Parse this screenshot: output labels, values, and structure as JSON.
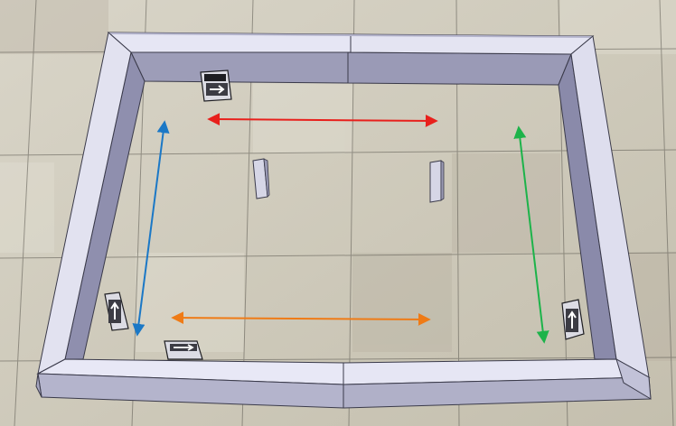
{
  "scene": {
    "colors": {
      "floor_light": "#d9d5c8",
      "floor_mid": "#c9c4b4",
      "floor_dark": "#b6b0a0",
      "tile_line": "#5a574f",
      "wall_top": "#e6e6f4",
      "wall_inner": "#9d9db8",
      "wall_inner_dark": "#7f7f9c",
      "wall_outer": "#b4b4cc",
      "wall_edge": "#3a3a4a",
      "post": "#d6d6e6",
      "robot_body": "#dcdce4",
      "robot_dark": "#1e1e22"
    },
    "arrows": [
      {
        "name": "red-arrow",
        "color": "#e8201c"
      },
      {
        "name": "blue-arrow",
        "color": "#1b78c6"
      },
      {
        "name": "green-arrow",
        "color": "#1db34a"
      },
      {
        "name": "orange-arrow",
        "color": "#ef7b16"
      }
    ]
  }
}
